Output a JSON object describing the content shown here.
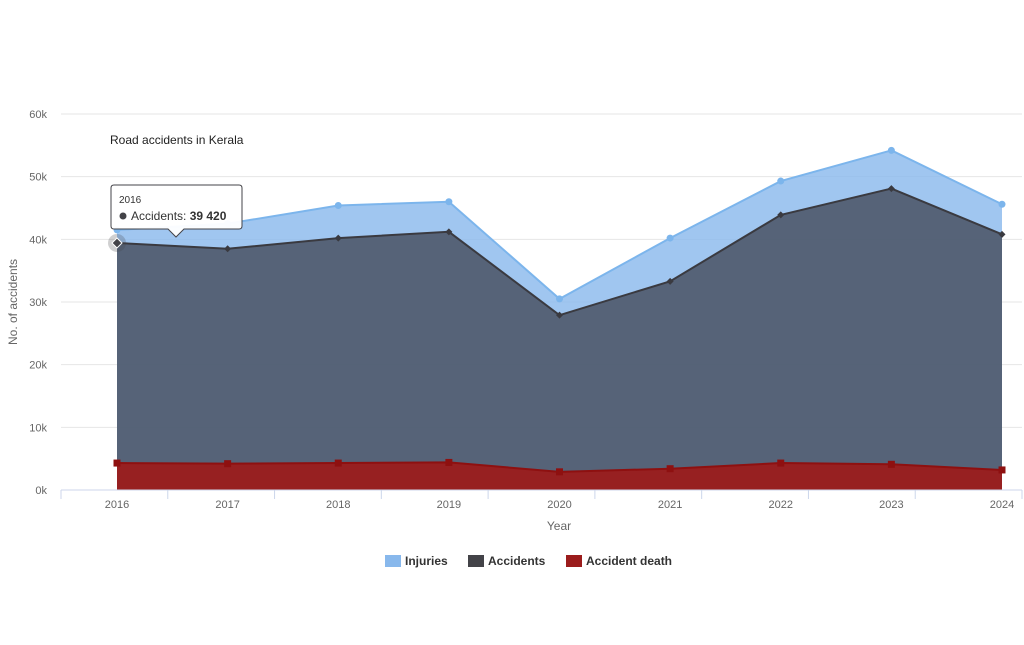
{
  "chart_data": {
    "type": "area",
    "title": "Road accidents in Kerala",
    "xlabel": "Year",
    "ylabel": "No. of accidents",
    "categories": [
      "2016",
      "2017",
      "2018",
      "2019",
      "2020",
      "2021",
      "2022",
      "2023",
      "2024"
    ],
    "ylim": [
      0,
      60000
    ],
    "yticks": [
      0,
      10000,
      20000,
      30000,
      40000,
      50000,
      60000
    ],
    "ytick_labels": [
      "0k",
      "10k",
      "20k",
      "30k",
      "40k",
      "50k",
      "60k"
    ],
    "grid": true,
    "legend_position": "bottom",
    "series": [
      {
        "name": "Injuries",
        "color": "#88b8ec",
        "values": [
          41500,
          42500,
          45400,
          46000,
          30500,
          40200,
          49300,
          54200,
          45600
        ]
      },
      {
        "name": "Accidents",
        "color": "#434348",
        "values": [
          39420,
          38500,
          40200,
          41200,
          27900,
          33300,
          43900,
          48100,
          40800
        ]
      },
      {
        "name": "Accident death",
        "color": "#9b1c1c",
        "values": [
          4300,
          4200,
          4300,
          4400,
          2900,
          3400,
          4300,
          4100,
          3200
        ]
      }
    ],
    "tooltip": {
      "category": "2016",
      "series_label": "Accidents: ",
      "value_label": "39 420"
    }
  }
}
